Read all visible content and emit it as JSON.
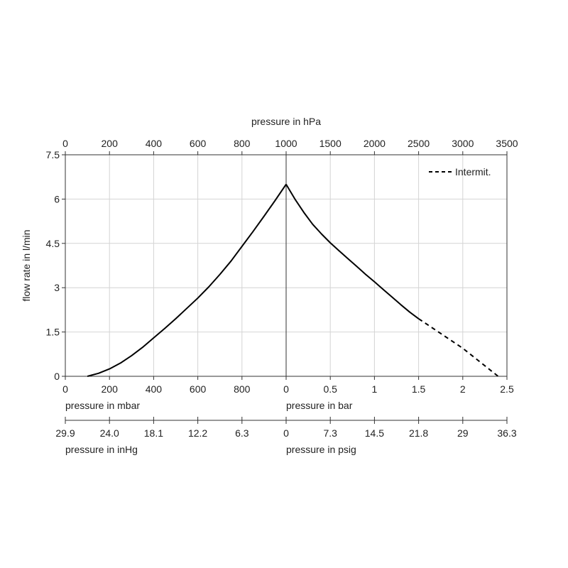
{
  "chart_data": {
    "type": "line",
    "y_axis": {
      "label": "flow rate in l/min",
      "range": [
        0,
        7.5
      ],
      "ticks": [
        "0",
        "1.5",
        "3",
        "4.5",
        "6",
        "7.5"
      ],
      "tick_values": [
        0,
        1.5,
        3,
        4.5,
        6,
        7.5
      ]
    },
    "top_axis": {
      "label": "pressure in hPa",
      "ticks": [
        "0",
        "200",
        "400",
        "600",
        "800",
        "1000",
        "1500",
        "2000",
        "2500",
        "3000",
        "3500"
      ]
    },
    "vacuum_axis": {
      "label": "pressure in mbar",
      "unit": "mbar",
      "range": [
        0,
        1000
      ],
      "ticks": [
        "0",
        "200",
        "400",
        "600",
        "800"
      ],
      "tick_values": [
        0,
        200,
        400,
        600,
        800
      ]
    },
    "pressure_axis": {
      "label": "pressure in bar",
      "unit": "bar",
      "range": [
        0,
        2.5
      ],
      "ticks": [
        "0",
        "0.5",
        "1",
        "1.5",
        "2",
        "2.5"
      ],
      "tick_values": [
        0,
        0.5,
        1,
        1.5,
        2,
        2.5
      ]
    },
    "inhg_axis": {
      "label": "pressure in inHg",
      "ticks": [
        "29.9",
        "24.0",
        "18.1",
        "12.2",
        "6.3"
      ]
    },
    "psig_axis": {
      "label": "pressure in psig",
      "ticks": [
        "0",
        "7.3",
        "14.5",
        "21.8",
        "29",
        "36.3"
      ]
    },
    "series": [
      {
        "segment": "vacuum",
        "x_unit": "mbar",
        "style": "solid",
        "points": [
          [
            100,
            0
          ],
          [
            150,
            0.1
          ],
          [
            200,
            0.25
          ],
          [
            250,
            0.45
          ],
          [
            300,
            0.7
          ],
          [
            350,
            0.98
          ],
          [
            400,
            1.3
          ],
          [
            450,
            1.62
          ],
          [
            500,
            1.95
          ],
          [
            550,
            2.3
          ],
          [
            600,
            2.65
          ],
          [
            650,
            3.03
          ],
          [
            700,
            3.45
          ],
          [
            750,
            3.9
          ],
          [
            800,
            4.4
          ],
          [
            850,
            4.9
          ],
          [
            900,
            5.42
          ],
          [
            950,
            5.95
          ],
          [
            1000,
            6.5
          ]
        ]
      },
      {
        "segment": "pressure",
        "x_unit": "bar",
        "style": "solid",
        "points": [
          [
            0,
            6.5
          ],
          [
            0.1,
            6.0
          ],
          [
            0.2,
            5.55
          ],
          [
            0.3,
            5.15
          ],
          [
            0.4,
            4.82
          ],
          [
            0.5,
            4.52
          ],
          [
            0.6,
            4.25
          ],
          [
            0.7,
            3.98
          ],
          [
            0.8,
            3.72
          ],
          [
            0.9,
            3.45
          ],
          [
            1.0,
            3.2
          ],
          [
            1.1,
            2.94
          ],
          [
            1.2,
            2.68
          ],
          [
            1.3,
            2.42
          ],
          [
            1.4,
            2.17
          ],
          [
            1.5,
            1.95
          ]
        ]
      },
      {
        "name": "Intermit.",
        "segment": "pressure",
        "x_unit": "bar",
        "style": "dashed",
        "points": [
          [
            1.5,
            1.95
          ],
          [
            2.0,
            0.95
          ],
          [
            2.4,
            0.0
          ]
        ]
      }
    ],
    "legend": {
      "placement": "top-right",
      "entries": [
        "Intermit."
      ]
    },
    "grid": true
  }
}
